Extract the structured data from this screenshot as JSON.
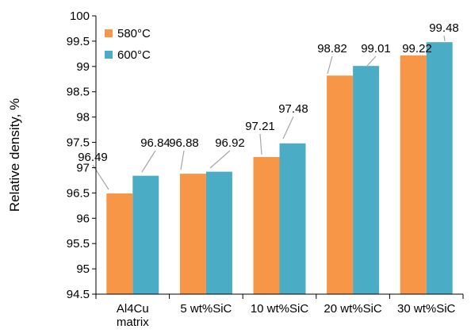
{
  "chart_data": {
    "type": "bar",
    "categories": [
      [
        "Al4Cu",
        "matrix"
      ],
      [
        "5 wt%SiC"
      ],
      [
        "10 wt%SiC"
      ],
      [
        "20 wt%SiC"
      ],
      [
        "30 wt%SiC"
      ]
    ],
    "series": [
      {
        "name": "580°C",
        "color": "#F79646",
        "values": [
          96.49,
          96.88,
          97.21,
          98.82,
          99.22
        ]
      },
      {
        "name": "600°C",
        "color": "#4BACC6",
        "values": [
          96.84,
          96.92,
          97.48,
          99.01,
          99.48
        ]
      }
    ],
    "data_labels": [
      [
        "96.49",
        "96.88",
        "97.21",
        "98.82",
        "99.22"
      ],
      [
        "96.84",
        "96.92",
        "97.48",
        "99.01",
        "99.48"
      ]
    ],
    "ylabel": "Relative density, %",
    "xlabel": "",
    "ylim": [
      94.5,
      100
    ],
    "yticks": [
      "94.5",
      "95",
      "95.5",
      "96",
      "96.5",
      "97",
      "97.5",
      "98",
      "98.5",
      "99",
      "99.5",
      "100"
    ],
    "grid": false,
    "legend_position": "top-left"
  }
}
